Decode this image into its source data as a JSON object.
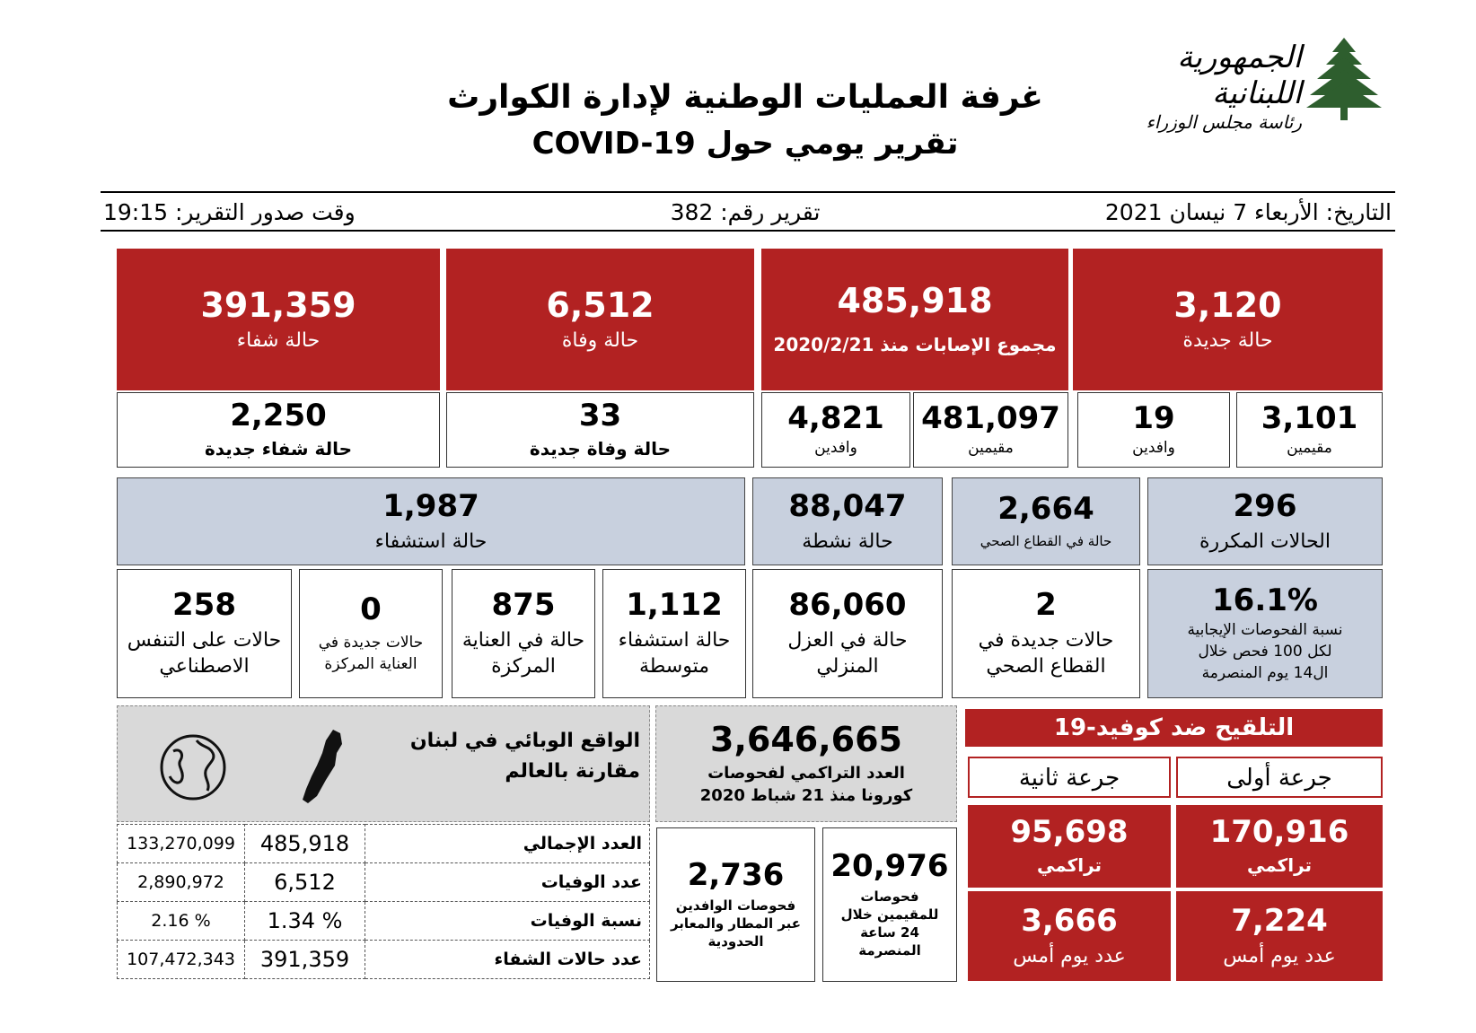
{
  "header": {
    "logo_arabic_line1": "الجمهورية اللبنانية",
    "logo_arabic_line2": "رئاسة مجلس الوزراء",
    "title": "غرفة العمليات الوطنية لإدارة الكوارث",
    "subtitle": "تقرير يومي حول COVID-19"
  },
  "info_bar": {
    "date": "التاريخ:  الأربعاء 7 نيسان 2021",
    "report_number": "تقرير رقم: 382",
    "report_time": "وقت صدور التقرير: 19:15"
  },
  "row1": {
    "new_cases": {
      "value": "3,120",
      "label": "حالة جديدة",
      "residents_value": "3,101",
      "residents_label": "مقيمين",
      "arrivals_value": "19",
      "arrivals_label": "وافدين"
    },
    "total_cases": {
      "value": "485,918",
      "label": "مجموع الإصابات منذ 2020/2/21",
      "residents_value": "481,097",
      "residents_label": "مقيمين",
      "arrivals_value": "4,821",
      "arrivals_label": "وافدين"
    },
    "deaths": {
      "value": "6,512",
      "label": "حالة وفاة",
      "new_value": "33",
      "new_label": "حالة وفاة جديدة"
    },
    "recoveries": {
      "value": "391,359",
      "label": "حالة شفاء",
      "new_value": "2,250",
      "new_label": "حالة شفاء جديدة"
    }
  },
  "row2": {
    "repeated": {
      "value": "296",
      "label": "الحالات المكررة"
    },
    "health_sector": {
      "value": "2,664",
      "label": "حالة في القطاع الصحي"
    },
    "active": {
      "value": "88,047",
      "label": "حالة نشطة"
    },
    "hospitalized": {
      "value": "1,987",
      "label": "حالة استشفاء"
    }
  },
  "row3": {
    "positivity": {
      "value": "16.1%",
      "label_1": "نسبة الفحوصات الإيجابية",
      "label_2": "لكل 100 فحص خلال",
      "label_3": "ال14 يوم المنصرمة"
    },
    "health_new": {
      "value": "2",
      "label_1": "حالات  جديدة في",
      "label_2": "القطاع الصحي"
    },
    "home_isolation": {
      "value": "86,060",
      "label_1": "حالة في العزل",
      "label_2": "المنزلي"
    },
    "medium_hosp": {
      "value": "1,112",
      "label_1": "حالة استشفاء",
      "label_2": "متوسطة"
    },
    "icu": {
      "value": "875",
      "label_1": "حالة في العناية",
      "label_2": "المركزة"
    },
    "icu_new": {
      "value": "0",
      "label_1": "حالات جديدة في",
      "label_2": "العناية المركزة"
    },
    "ventilator": {
      "value": "258",
      "label_1": "حالات على التنفس",
      "label_2": "الاصطناعي"
    }
  },
  "vaccination": {
    "title": "التلقيح ضد كوفيد-19",
    "dose1_label": "جرعة أولى",
    "dose2_label": "جرعة ثانية",
    "dose1_cumulative": "170,916",
    "dose2_cumulative": "95,698",
    "cumulative_label": "تراكمي",
    "dose1_yesterday": "7,224",
    "dose2_yesterday": "3,666",
    "yesterday_label": "عدد يوم أمس"
  },
  "tests": {
    "cumulative_value": "3,646,665",
    "cumulative_label_1": "العدد التراكمي لفحوصات",
    "cumulative_label_2": "كورونا منذ 21 شباط 2020",
    "residents_value": "20,976",
    "residents_label_1": "فحوصات",
    "residents_label_2": "للمقيمين خلال",
    "residents_label_3": "24 ساعة",
    "residents_label_4": "المنصرمة",
    "arrivals_value": "2,736",
    "arrivals_label_1": "فحوصات الوافدين",
    "arrivals_label_2": "عبر المطار والمعابر",
    "arrivals_label_3": "الحدودية"
  },
  "comparison": {
    "title": "الواقع الوبائي في لبنان مقارنة بالعالم",
    "rows": [
      {
        "label": "العدد الإجمالي",
        "lebanon": "485,918",
        "world": "133,270,099"
      },
      {
        "label": "عدد الوفيات",
        "lebanon": "6,512",
        "world": "2,890,972"
      },
      {
        "label": "نسبة الوفيات",
        "lebanon": "1.34 %",
        "world": "2.16 %"
      },
      {
        "label": "عدد حالات الشفاء",
        "lebanon": "391,359",
        "world": "107,472,343"
      }
    ]
  },
  "colors": {
    "red": "#b22222",
    "blue": "#c8d0de",
    "grey": "#d9d9d9"
  },
  "icons": [
    "cedar-logo-icon",
    "lebanon-map-icon",
    "globe-icon"
  ]
}
